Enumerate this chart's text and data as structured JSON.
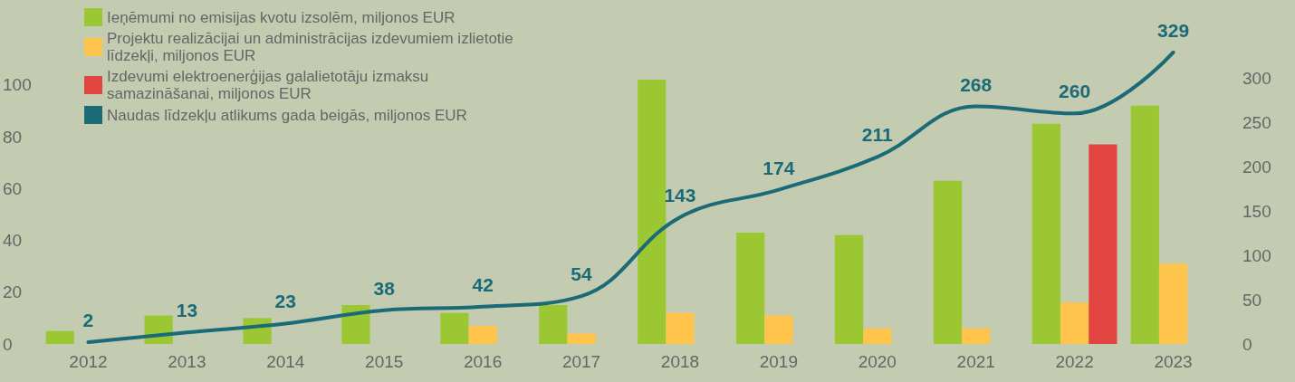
{
  "chart_data": {
    "type": "bar",
    "categories": [
      "2012",
      "2013",
      "2014",
      "2015",
      "2016",
      "2017",
      "2018",
      "2019",
      "2020",
      "2021",
      "2022",
      "2023"
    ],
    "series": [
      {
        "name": "Ieņēmumi no emisijas kvotu izsolēm, miljonos EUR",
        "color": "#9bc832",
        "values": [
          5,
          11,
          10,
          15,
          12,
          15,
          102,
          43,
          42,
          63,
          85,
          92
        ]
      },
      {
        "name": "Projektu realizācijai un administrācijas izdevumiem izlietotie līdzekļi, miljonos EUR",
        "color": "#fec44c",
        "values": [
          null,
          null,
          null,
          null,
          7,
          4,
          12,
          11,
          6,
          6,
          16,
          31
        ]
      },
      {
        "name": "Izdevumi elektroenerģijas galalietotāju izmaksu samazināšanai, miljonos EUR",
        "color": "#e24541",
        "values": [
          null,
          null,
          null,
          null,
          null,
          null,
          null,
          null,
          null,
          null,
          77,
          null
        ]
      },
      {
        "name": "Naudas līdzekļu atlikums gada beigās, miljonos EUR",
        "color": "#1b6a78",
        "type": "line",
        "axis": "y2",
        "values": [
          2,
          13,
          23,
          38,
          42,
          54,
          143,
          174,
          211,
          268,
          260,
          329
        ],
        "value_labels": [
          "2",
          "13",
          "23",
          "38",
          "42",
          "54",
          "143",
          "174",
          "211",
          "268",
          "260",
          "329"
        ]
      }
    ],
    "ylim": [
      0,
      116
    ],
    "yticks": [
      0,
      20,
      40,
      60,
      80,
      100
    ],
    "y2lim": [
      0,
      339
    ],
    "y2ticks": [
      0,
      50,
      100,
      150,
      200,
      250,
      300
    ],
    "grid": false,
    "legend": "top left",
    "marker": "none",
    "line_style": "solid"
  }
}
